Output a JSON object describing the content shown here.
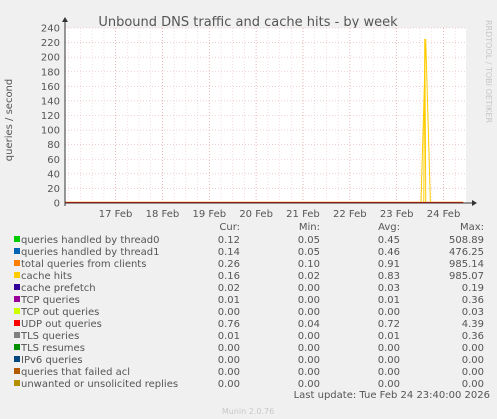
{
  "chart_data": {
    "type": "line",
    "title": "Unbound DNS traffic and cache hits - by week",
    "ylabel": "queries / second",
    "side_label": "RRDTOOL / TOBI OETIKER",
    "ylim": [
      0,
      240
    ],
    "y_ticks": [
      0,
      20,
      40,
      60,
      80,
      100,
      120,
      140,
      160,
      180,
      200,
      220,
      240
    ],
    "x_ticks": [
      "17 Feb",
      "18 Feb",
      "19 Feb",
      "20 Feb",
      "21 Feb",
      "22 Feb",
      "23 Feb",
      "24 Feb"
    ],
    "x_range_days": [
      16.42,
      24.98
    ],
    "grid": true,
    "series": [
      {
        "name": "queries handled by thread0",
        "color": "#00cc00",
        "baseline": 0.4,
        "spike": 0
      },
      {
        "name": "queries handled by thread1",
        "color": "#0066b3",
        "baseline": 0.4,
        "spike": 0
      },
      {
        "name": "total queries from clients",
        "color": "#ff8000",
        "baseline": 0.9,
        "spike": 0
      },
      {
        "name": "cache hits",
        "color": "#ffcc00",
        "baseline": 0.8,
        "spike": 225
      },
      {
        "name": "cache prefetch",
        "color": "#330099",
        "baseline": 0.03,
        "spike": 0
      },
      {
        "name": "TCP queries",
        "color": "#990099",
        "baseline": 0.01,
        "spike": 0
      },
      {
        "name": "TCP out queries",
        "color": "#ccff00",
        "baseline": 0,
        "spike": 0
      },
      {
        "name": "UDP out queries",
        "color": "#ff0000",
        "baseline": 0.72,
        "spike": 0
      },
      {
        "name": "TLS queries",
        "color": "#808080",
        "baseline": 0.01,
        "spike": 0
      },
      {
        "name": "TLS resumes",
        "color": "#008f00",
        "baseline": 0,
        "spike": 0
      },
      {
        "name": "IPv6 queries",
        "color": "#00487d",
        "baseline": 0,
        "spike": 0
      },
      {
        "name": "queries that failed acl",
        "color": "#b35a00",
        "baseline": 0,
        "spike": 0
      },
      {
        "name": "unwanted or unsolicited replies",
        "color": "#b38f00",
        "baseline": 0,
        "spike": 0
      }
    ],
    "spike_day": 24.1,
    "legend": {
      "headers": [
        "Cur:",
        "Min:",
        "Avg:",
        "Max:"
      ],
      "rows": [
        [
          "0.12",
          "0.05",
          "0.45",
          "508.89"
        ],
        [
          "0.14",
          "0.05",
          "0.46",
          "476.25"
        ],
        [
          "0.26",
          "0.10",
          "0.91",
          "985.14"
        ],
        [
          "0.16",
          "0.02",
          "0.83",
          "985.07"
        ],
        [
          "0.02",
          "0.00",
          "0.03",
          "0.19"
        ],
        [
          "0.01",
          "0.00",
          "0.01",
          "0.36"
        ],
        [
          "0.00",
          "0.00",
          "0.00",
          "0.03"
        ],
        [
          "0.76",
          "0.04",
          "0.72",
          "4.39"
        ],
        [
          "0.01",
          "0.00",
          "0.01",
          "0.36"
        ],
        [
          "0.00",
          "0.00",
          "0.00",
          "0.00"
        ],
        [
          "0.00",
          "0.00",
          "0.00",
          "0.00"
        ],
        [
          "0.00",
          "0.00",
          "0.00",
          "0.00"
        ],
        [
          "0.00",
          "0.00",
          "0.00",
          "0.00"
        ]
      ]
    },
    "last_update": "Last update: Tue Feb 24 23:40:00 2026",
    "generator": "Munin 2.0.76"
  }
}
